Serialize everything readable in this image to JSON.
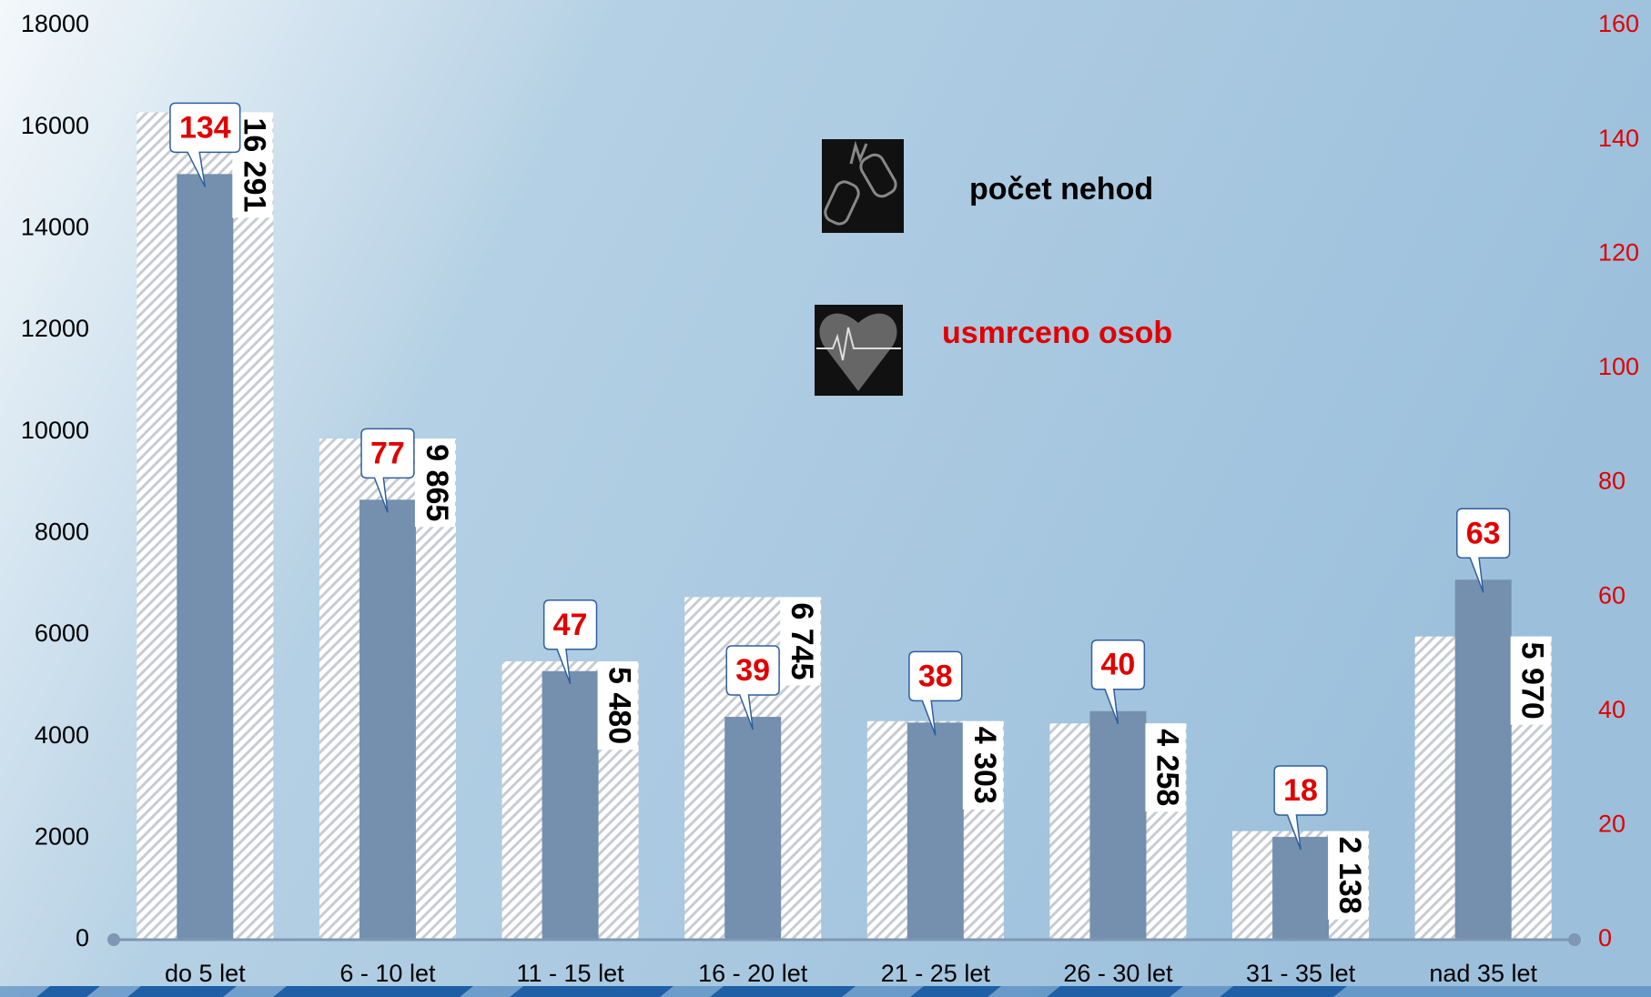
{
  "chart_data": {
    "type": "bar",
    "categories": [
      "do 5 let",
      "6 - 10 let",
      "11 - 15 let",
      "16 - 20 let",
      "21 - 25 let",
      "26 - 30 let",
      "31 - 35 let",
      "nad 35 let"
    ],
    "series": [
      {
        "name": "počet nehod",
        "color": "#ffffff",
        "values": [
          16291,
          9865,
          5480,
          6745,
          4303,
          4258,
          2138,
          5970
        ],
        "value_labels": [
          "16 291",
          "9 865",
          "5 480",
          "6 745",
          "4 303",
          "4 258",
          "2 138",
          "5 970"
        ]
      },
      {
        "name": "usmrceno osob",
        "color": "#7490ae",
        "axis": "y2",
        "values": [
          134,
          77,
          47,
          39,
          38,
          40,
          18,
          63
        ]
      }
    ],
    "ylim": [
      0,
      18000
    ],
    "yticks": [
      0,
      2000,
      4000,
      6000,
      8000,
      10000,
      12000,
      14000,
      16000,
      18000
    ],
    "y2lim": [
      0,
      160
    ],
    "y2ticks": [
      0,
      20,
      40,
      60,
      80,
      100,
      120,
      140,
      160
    ]
  }
}
